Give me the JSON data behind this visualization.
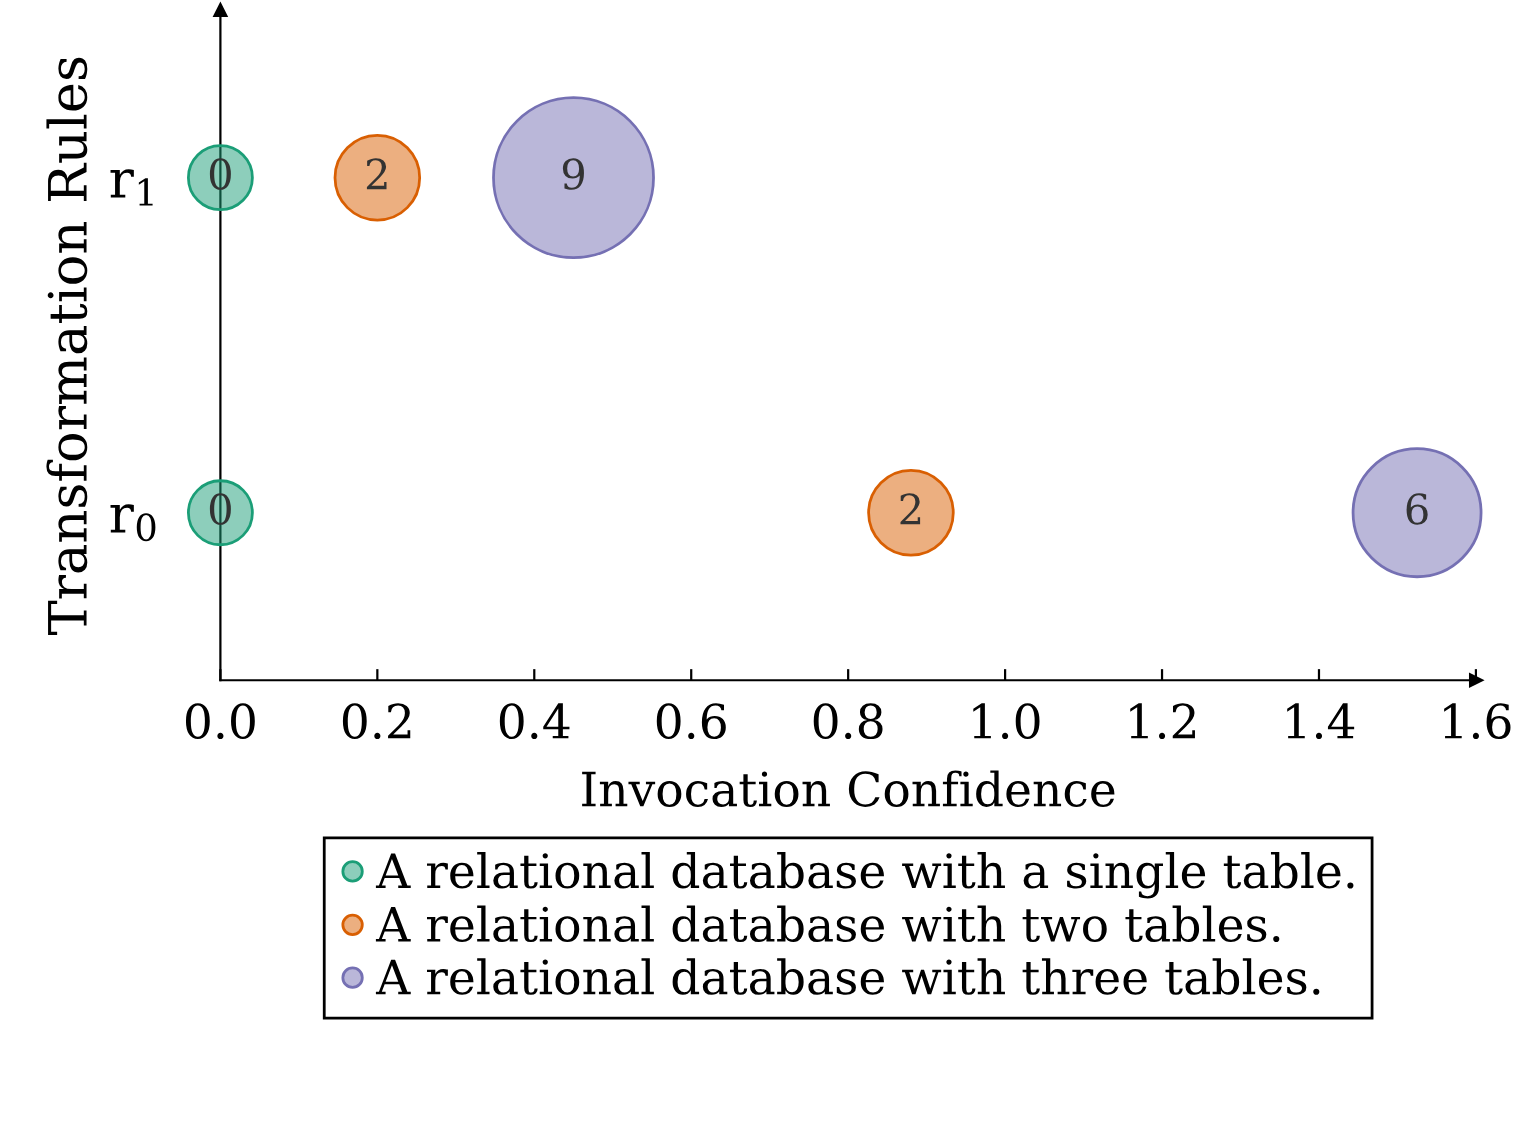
{
  "chart_data": {
    "type": "bubble",
    "xlabel": "Invocation Confidence",
    "ylabel": "Transformation Rules",
    "xlim": [
      0,
      1.6
    ],
    "xticks": [
      {
        "value": 0,
        "label": "0.0"
      },
      0.2,
      0.4,
      0.6,
      0.8,
      {
        "value": 1,
        "label": "1.0"
      },
      1.2,
      1.4,
      1.6
    ],
    "ylim": [
      -0.5,
      1.5
    ],
    "yticks": [
      {
        "value": 0,
        "label": "r$_{0}$"
      },
      {
        "value": 1,
        "label": "r$_{1}$"
      }
    ],
    "annotations": [
      {
        "text": "0",
        "x": 0,
        "y": 1
      },
      {
        "text": "0",
        "x": 0,
        "y": 0
      },
      {
        "text": "2",
        "x": 0.2,
        "y": 1
      },
      {
        "text": "2",
        "x": 0.88,
        "y": 0
      },
      {
        "text": "9",
        "x": 0.45,
        "y": 1
      },
      {
        "text": "6",
        "x": 1.525,
        "y": 0
      }
    ],
    "grid": false,
    "legend": "bottom",
    "marker": "circle",
    "series": [
      {
        "name": "A relational database with a single table.",
        "color": "#1b9e77",
        "x": [
          0,
          0
        ],
        "values": [
          1,
          0
        ],
        "sizes": [
          0.16,
          0.16
        ]
      },
      {
        "name": "A relational database with two tables.",
        "color": "#d95f02",
        "x": [
          0.2,
          0.88
        ],
        "values": [
          1,
          0
        ],
        "sizes": [
          0.28,
          0.28
        ]
      },
      {
        "name": "A relational database with three tables.",
        "color": "#7570b3",
        "x": [
          0.45,
          1.525
        ],
        "values": [
          1,
          0
        ],
        "sizes": [
          1,
          0.64
        ]
      }
    ]
  }
}
